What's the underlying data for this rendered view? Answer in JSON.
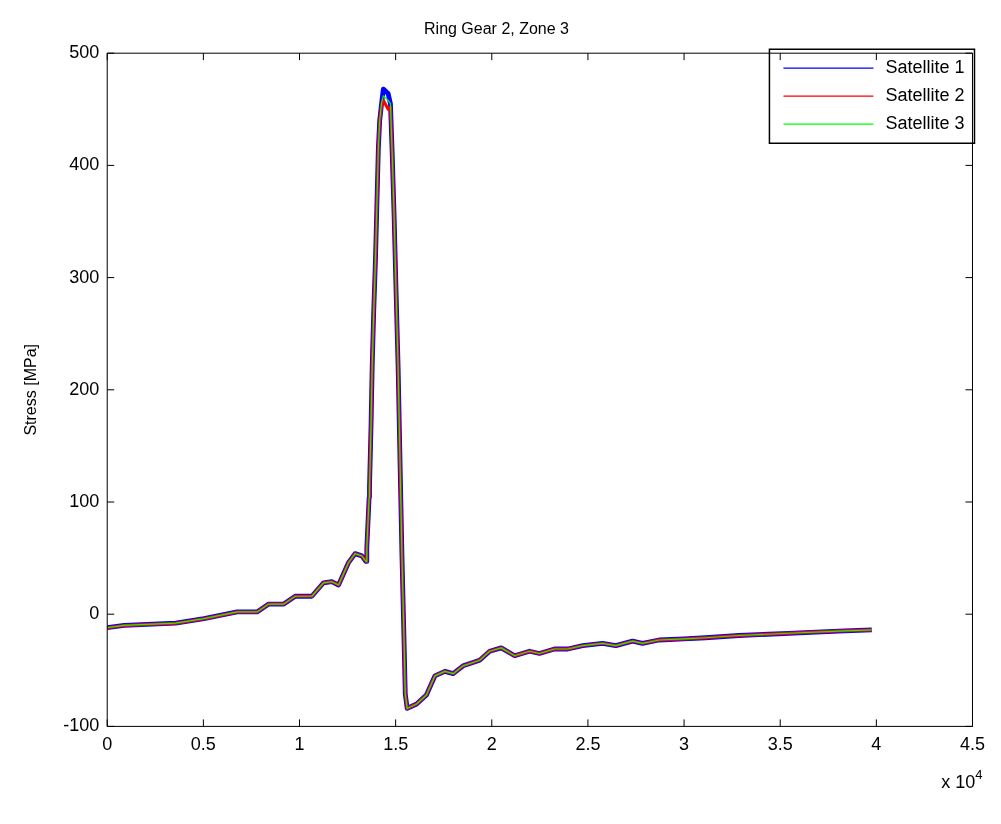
{
  "chart_data": {
    "type": "line",
    "title": "Ring Gear 2, Zone 3",
    "ylabel": "Stress [MPa]",
    "annotations": [
      "x 10$^{4}$"
    ],
    "x": [
      0,
      0.088,
      0.356,
      0.503,
      0.676,
      0.779,
      0.84,
      0.918,
      0.978,
      1.064,
      1.125,
      1.168,
      1.203,
      1.255,
      1.289,
      1.324,
      1.346,
      1.35,
      1.362,
      1.364,
      1.372,
      1.378,
      1.386,
      1.395,
      1.402,
      1.41,
      1.417,
      1.428,
      1.436,
      1.461,
      1.473,
      1.482,
      1.492,
      1.502,
      1.513,
      1.523,
      1.533,
      1.544,
      1.55,
      1.56,
      1.609,
      1.66,
      1.704,
      1.756,
      1.799,
      1.851,
      1.937,
      1.989,
      2.049,
      2.119,
      2.196,
      2.248,
      2.326,
      2.395,
      2.473,
      2.576,
      2.645,
      2.732,
      2.784,
      2.87,
      3.0,
      3.112,
      3.285,
      3.544,
      3.804,
      3.976
    ],
    "series": [
      {
        "name": "Satellite 1",
        "color": "#0000ff",
        "values": [
          -12,
          -10,
          -8,
          -4,
          2,
          2,
          9,
          9,
          16,
          16,
          28,
          29,
          26,
          46,
          54,
          52,
          47,
          59,
          104,
          113,
          168,
          221,
          270,
          316,
          362,
          415,
          440,
          457,
          468,
          464,
          455,
          411,
          355,
          289,
          219,
          134,
          51,
          -26,
          -71,
          -84,
          -80,
          -72,
          -55,
          -51,
          -53,
          -46,
          -41,
          -33,
          -30,
          -37,
          -33,
          -35,
          -31,
          -31,
          -28,
          -26,
          -28,
          -24,
          -26,
          -23,
          -22,
          -21,
          -19,
          -17,
          -15,
          -14
        ]
      },
      {
        "name": "Satellite 2",
        "color": "#ff0000",
        "values": [
          -12,
          -10,
          -8,
          -4,
          2,
          2,
          9,
          9,
          16,
          16,
          28,
          29,
          26,
          46,
          54,
          52,
          47,
          59,
          104,
          113,
          168,
          221,
          270,
          316,
          362,
          415,
          440,
          455,
          458,
          450,
          452,
          411,
          355,
          289,
          219,
          134,
          51,
          -26,
          -71,
          -84,
          -80,
          -72,
          -55,
          -51,
          -53,
          -46,
          -41,
          -33,
          -30,
          -37,
          -33,
          -35,
          -31,
          -31,
          -28,
          -26,
          -28,
          -24,
          -26,
          -23,
          -22,
          -21,
          -19,
          -17,
          -15,
          -14
        ]
      },
      {
        "name": "Satellite 3",
        "color": "#00ff00",
        "values": [
          -12,
          -10,
          -8,
          -4,
          2,
          2,
          9,
          9,
          16,
          16,
          28,
          29,
          26,
          46,
          54,
          52,
          47,
          59,
          104,
          113,
          168,
          221,
          270,
          316,
          362,
          415,
          440,
          457,
          462,
          458,
          455,
          411,
          355,
          289,
          219,
          134,
          51,
          -26,
          -71,
          -84,
          -80,
          -72,
          -55,
          -51,
          -53,
          -46,
          -41,
          -33,
          -30,
          -37,
          -33,
          -35,
          -31,
          -31,
          -28,
          -26,
          -28,
          -24,
          -26,
          -23,
          -22,
          -21,
          -19,
          -17,
          -15,
          -14
        ]
      }
    ],
    "xlim": [
      0,
      4.5
    ],
    "xticks": [
      0,
      0.5,
      1,
      1.5,
      2,
      2.5,
      3,
      3.5,
      4,
      4.5
    ],
    "ylim": [
      -100,
      500
    ],
    "yticks": [
      -100,
      0,
      100,
      200,
      300,
      400,
      500
    ],
    "grid": false,
    "legend": "top right",
    "marker": "none",
    "line_style": "solid"
  }
}
